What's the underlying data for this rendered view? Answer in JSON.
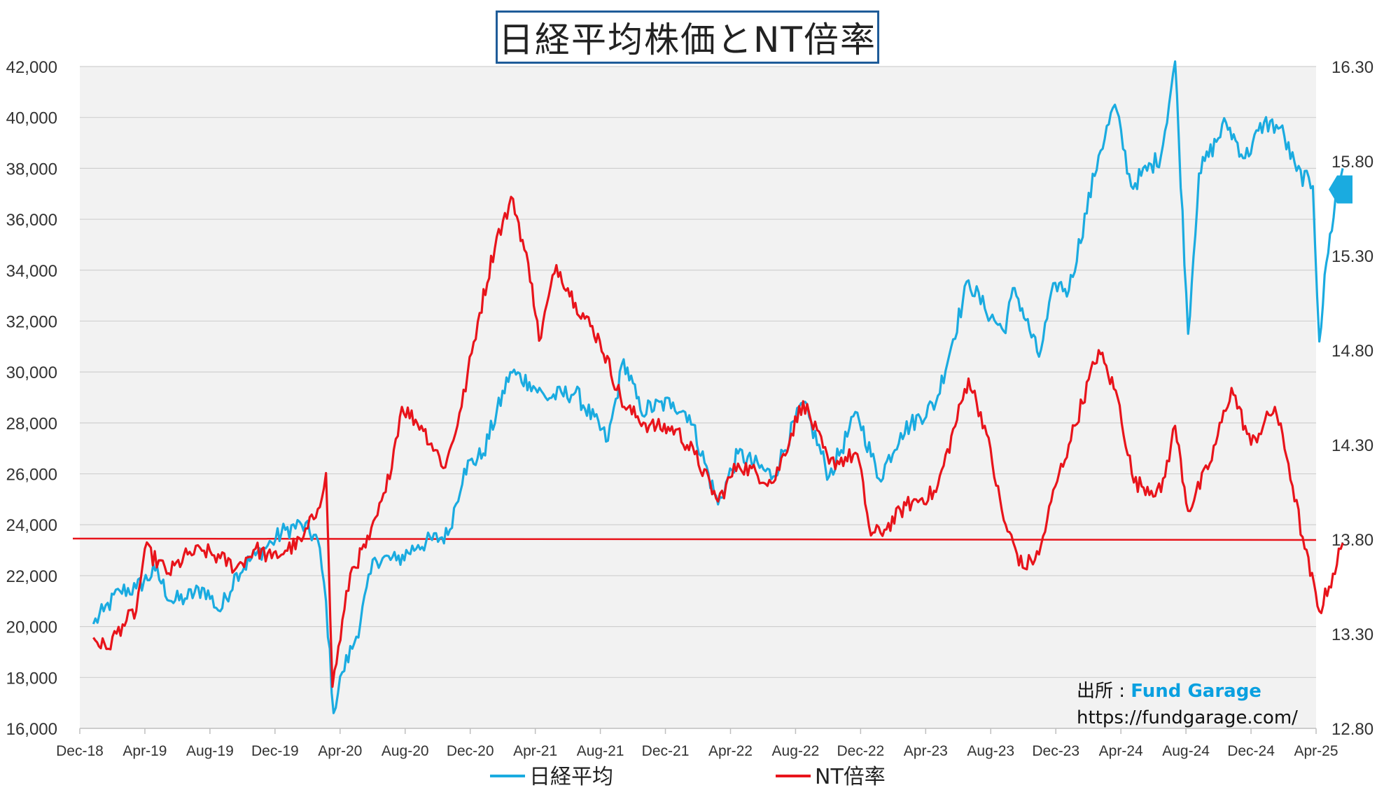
{
  "chart_data": {
    "type": "line",
    "title": "日経平均株価とNT倍率",
    "x_tick_labels": [
      "Dec-18",
      "Apr-19",
      "Aug-19",
      "Dec-19",
      "Apr-20",
      "Aug-20",
      "Dec-20",
      "Apr-21",
      "Aug-21",
      "Dec-21",
      "Apr-22",
      "Aug-22",
      "Dec-22",
      "Apr-23",
      "Aug-23",
      "Dec-23",
      "Apr-24",
      "Aug-24",
      "Dec-24",
      "Apr-25"
    ],
    "x_range": [
      "2018-12",
      "2025-04"
    ],
    "y_left": {
      "ylim": [
        16000,
        42000
      ],
      "ticks": [
        "16,000",
        "18,000",
        "20,000",
        "22,000",
        "24,000",
        "26,000",
        "28,000",
        "30,000",
        "32,000",
        "34,000",
        "36,000",
        "38,000",
        "40,000",
        "42,000"
      ]
    },
    "y_right": {
      "ylim": [
        12.8,
        16.3
      ],
      "ticks": [
        "12.80",
        "13.30",
        "13.80",
        "14.30",
        "14.80",
        "15.30",
        "15.80",
        "16.30"
      ]
    },
    "grid": true,
    "legend": {
      "placement": "bottom"
    },
    "series": [
      {
        "name": "日経平均",
        "axis": "left",
        "color": "#1aabe0",
        "points": [
          [
            "2018-12-26",
            20100
          ],
          [
            "2019-01-15",
            20600
          ],
          [
            "2019-02-15",
            21400
          ],
          [
            "2019-03-15",
            21500
          ],
          [
            "2019-04-20",
            22200
          ],
          [
            "2019-05-20",
            21000
          ],
          [
            "2019-06-15",
            21100
          ],
          [
            "2019-07-20",
            21500
          ],
          [
            "2019-08-20",
            20600
          ],
          [
            "2019-09-20",
            22100
          ],
          [
            "2019-10-25",
            22800
          ],
          [
            "2019-11-25",
            23300
          ],
          [
            "2019-12-20",
            23800
          ],
          [
            "2020-01-20",
            24000
          ],
          [
            "2020-02-20",
            23400
          ],
          [
            "2020-03-05",
            21000
          ],
          [
            "2020-03-19",
            16600
          ],
          [
            "2020-04-05",
            18200
          ],
          [
            "2020-05-01",
            19600
          ],
          [
            "2020-06-05",
            22700
          ],
          [
            "2020-07-15",
            22600
          ],
          [
            "2020-08-25",
            23200
          ],
          [
            "2020-10-20",
            23600
          ],
          [
            "2020-11-20",
            26200
          ],
          [
            "2020-12-25",
            26800
          ],
          [
            "2021-02-15",
            30000
          ],
          [
            "2021-03-20",
            29600
          ],
          [
            "2021-04-20",
            29000
          ],
          [
            "2021-06-15",
            29200
          ],
          [
            "2021-08-15",
            27300
          ],
          [
            "2021-09-14",
            30500
          ],
          [
            "2021-10-15",
            28500
          ],
          [
            "2021-12-15",
            28800
          ],
          [
            "2022-01-15",
            28300
          ],
          [
            "2022-03-08",
            24800
          ],
          [
            "2022-04-15",
            26800
          ],
          [
            "2022-06-20",
            25900
          ],
          [
            "2022-08-15",
            28800
          ],
          [
            "2022-10-03",
            25900
          ],
          [
            "2022-11-25",
            28400
          ],
          [
            "2023-01-05",
            25800
          ],
          [
            "2023-02-15",
            27600
          ],
          [
            "2023-04-20",
            28800
          ],
          [
            "2023-06-20",
            33600
          ],
          [
            "2023-07-20",
            32500
          ],
          [
            "2023-08-25",
            31600
          ],
          [
            "2023-09-15",
            33300
          ],
          [
            "2023-10-30",
            30600
          ],
          [
            "2023-11-30",
            33500
          ],
          [
            "2023-12-25",
            33200
          ],
          [
            "2024-02-20",
            38500
          ],
          [
            "2024-03-20",
            40500
          ],
          [
            "2024-04-20",
            37300
          ],
          [
            "2024-06-15",
            38500
          ],
          [
            "2024-07-11",
            42200
          ],
          [
            "2024-08-05",
            31500
          ],
          [
            "2024-08-25",
            37800
          ],
          [
            "2024-10-15",
            39800
          ],
          [
            "2024-11-20",
            38400
          ],
          [
            "2024-12-25",
            39800
          ],
          [
            "2025-01-25",
            39600
          ],
          [
            "2025-02-25",
            37900
          ],
          [
            "2025-03-25",
            37300
          ],
          [
            "2025-04-07",
            31200
          ],
          [
            "2025-04-20",
            34300
          ],
          [
            "2025-05-10",
            37200
          ],
          [
            "2025-05-20",
            38000
          ]
        ]
      },
      {
        "name": "NT倍率",
        "axis": "right",
        "color": "#e8141b",
        "points": [
          [
            "2018-12-26",
            13.28
          ],
          [
            "2019-01-20",
            13.22
          ],
          [
            "2019-02-20",
            13.35
          ],
          [
            "2019-03-15",
            13.42
          ],
          [
            "2019-04-01",
            13.75
          ],
          [
            "2019-05-15",
            13.62
          ],
          [
            "2019-06-20",
            13.72
          ],
          [
            "2019-07-20",
            13.74
          ],
          [
            "2019-08-20",
            13.7
          ],
          [
            "2019-09-20",
            13.65
          ],
          [
            "2019-10-25",
            13.75
          ],
          [
            "2019-11-25",
            13.7
          ],
          [
            "2019-12-20",
            13.74
          ],
          [
            "2020-01-20",
            13.79
          ],
          [
            "2020-02-20",
            13.96
          ],
          [
            "2020-03-05",
            14.15
          ],
          [
            "2020-03-17",
            13.02
          ],
          [
            "2020-04-20",
            13.62
          ],
          [
            "2020-05-25",
            13.8
          ],
          [
            "2020-06-25",
            14.05
          ],
          [
            "2020-07-25",
            14.5
          ],
          [
            "2020-09-01",
            14.4
          ],
          [
            "2020-10-15",
            14.18
          ],
          [
            "2020-11-15",
            14.5
          ],
          [
            "2020-12-15",
            14.95
          ],
          [
            "2021-01-20",
            15.4
          ],
          [
            "2021-02-20",
            15.6
          ],
          [
            "2021-03-25",
            15.15
          ],
          [
            "2021-04-08",
            14.85
          ],
          [
            "2021-05-10",
            15.25
          ],
          [
            "2021-06-15",
            15.05
          ],
          [
            "2021-07-30",
            14.85
          ],
          [
            "2021-09-15",
            14.5
          ],
          [
            "2021-11-01",
            14.4
          ],
          [
            "2021-12-20",
            14.38
          ],
          [
            "2022-01-25",
            14.25
          ],
          [
            "2022-03-08",
            14.0
          ],
          [
            "2022-04-15",
            14.2
          ],
          [
            "2022-06-20",
            14.1
          ],
          [
            "2022-08-15",
            14.53
          ],
          [
            "2022-10-03",
            14.2
          ],
          [
            "2022-11-25",
            14.25
          ],
          [
            "2022-12-20",
            13.82
          ],
          [
            "2023-01-15",
            13.85
          ],
          [
            "2023-02-25",
            13.98
          ],
          [
            "2023-04-20",
            14.05
          ],
          [
            "2023-06-20",
            14.65
          ],
          [
            "2023-07-20",
            14.4
          ],
          [
            "2023-08-25",
            13.9
          ],
          [
            "2023-09-30",
            13.65
          ],
          [
            "2023-10-30",
            13.72
          ],
          [
            "2023-11-30",
            14.08
          ],
          [
            "2023-12-25",
            14.3
          ],
          [
            "2024-02-20",
            14.8
          ],
          [
            "2024-03-25",
            14.55
          ],
          [
            "2024-04-25",
            14.1
          ],
          [
            "2024-06-15",
            14.05
          ],
          [
            "2024-07-11",
            14.4
          ],
          [
            "2024-08-05",
            13.95
          ],
          [
            "2024-09-15",
            14.2
          ],
          [
            "2024-10-25",
            14.6
          ],
          [
            "2024-12-01",
            14.3
          ],
          [
            "2025-01-15",
            14.5
          ],
          [
            "2025-02-10",
            14.2
          ],
          [
            "2025-03-10",
            13.75
          ],
          [
            "2025-04-07",
            13.42
          ],
          [
            "2025-04-25",
            13.55
          ],
          [
            "2025-05-20",
            13.78
          ]
        ]
      }
    ],
    "reference_line": {
      "axis": "right",
      "value": 13.8,
      "color": "#e8141b"
    },
    "marker": {
      "axis": "right",
      "value": 15.65,
      "color": "#1aabe0"
    },
    "annotations": {
      "source_label": "出所 : ",
      "source_brand": "Fund Garage",
      "source_url": "https://fundgarage.com/"
    }
  }
}
